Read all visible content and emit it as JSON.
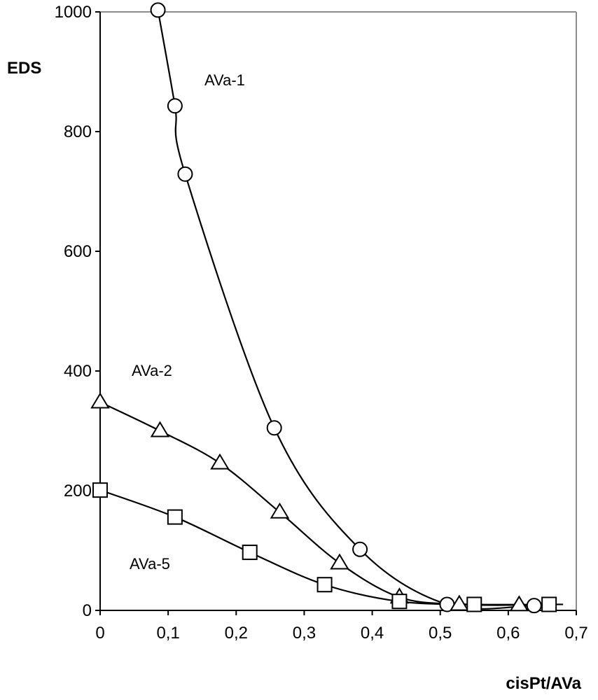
{
  "chart_data": {
    "type": "scatter",
    "xlabel": "cisPt/AVa",
    "ylabel": "EDS",
    "xlim": [
      0,
      0.7
    ],
    "ylim": [
      0,
      1000
    ],
    "x_ticks": [
      "0",
      "0,1",
      "0,2",
      "0,3",
      "0,4",
      "0,5",
      "0,6",
      "0,7"
    ],
    "y_ticks": [
      "0",
      "200",
      "400",
      "600",
      "800",
      "1000"
    ],
    "grid": false,
    "legend": "none",
    "series": [
      {
        "name": "AVa-1",
        "marker": "circle",
        "points": [
          {
            "x": 0.085,
            "y": 1003
          },
          {
            "x": 0.11,
            "y": 843
          },
          {
            "x": 0.125,
            "y": 729
          },
          {
            "x": 0.256,
            "y": 305
          },
          {
            "x": 0.382,
            "y": 102
          },
          {
            "x": 0.51,
            "y": 10
          },
          {
            "x": 0.638,
            "y": 8
          }
        ]
      },
      {
        "name": "AVa-2",
        "marker": "triangle",
        "points": [
          {
            "x": 0.0,
            "y": 348
          },
          {
            "x": 0.088,
            "y": 300
          },
          {
            "x": 0.176,
            "y": 246
          },
          {
            "x": 0.264,
            "y": 164
          },
          {
            "x": 0.352,
            "y": 79
          },
          {
            "x": 0.44,
            "y": 22
          },
          {
            "x": 0.528,
            "y": 10
          },
          {
            "x": 0.616,
            "y": 9
          }
        ]
      },
      {
        "name": "AVa-5",
        "marker": "square",
        "points": [
          {
            "x": 0.0,
            "y": 201
          },
          {
            "x": 0.11,
            "y": 156
          },
          {
            "x": 0.22,
            "y": 97
          },
          {
            "x": 0.33,
            "y": 43
          },
          {
            "x": 0.44,
            "y": 15
          },
          {
            "x": 0.55,
            "y": 10
          },
          {
            "x": 0.66,
            "y": 10
          }
        ]
      }
    ]
  }
}
